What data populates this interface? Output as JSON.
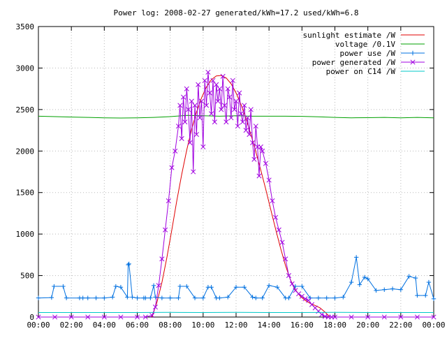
{
  "chart_data": {
    "type": "line",
    "title": "Power log: 2008-02-27 generated/kWh=17.2 used/kWh=6.8",
    "xlabel": "",
    "ylabel": "",
    "x_tick_labels": [
      "00:00",
      "02:00",
      "04:00",
      "06:00",
      "08:00",
      "10:00",
      "12:00",
      "14:00",
      "16:00",
      "18:00",
      "20:00",
      "22:00",
      "00:00"
    ],
    "y_ticks": [
      0,
      500,
      1000,
      1500,
      2000,
      2500,
      3000,
      3500
    ],
    "xlim": [
      0,
      24
    ],
    "ylim": [
      0,
      3500
    ],
    "grid": true,
    "legend_position": "top-right",
    "series": [
      {
        "name": "sunlight estimate /W",
        "color": "#e00000",
        "style": "line",
        "x": [
          6.9,
          7.2,
          7.5,
          7.8,
          8.1,
          8.4,
          8.7,
          9.0,
          9.3,
          9.6,
          9.9,
          10.2,
          10.5,
          10.8,
          11.1,
          11.4,
          11.7,
          12.0,
          12.3,
          12.6,
          12.9,
          13.2,
          13.5,
          13.8,
          14.1,
          14.4,
          14.7,
          15.0,
          15.3,
          15.6,
          15.9,
          16.2,
          16.5,
          16.8,
          17.1,
          17.4,
          17.7
        ],
        "y": [
          0,
          180,
          420,
          720,
          1050,
          1400,
          1720,
          2010,
          2260,
          2470,
          2640,
          2770,
          2860,
          2905,
          2910,
          2880,
          2810,
          2700,
          2560,
          2390,
          2200,
          1990,
          1770,
          1540,
          1300,
          1060,
          830,
          620,
          450,
          330,
          250,
          200,
          165,
          140,
          110,
          60,
          0
        ]
      },
      {
        "name": "voltage /0.1V",
        "color": "#00a000",
        "style": "line",
        "x": [
          0,
          1,
          2,
          3,
          4,
          5,
          6,
          7,
          8,
          9,
          10,
          11,
          12,
          13,
          14,
          15,
          16,
          17,
          18,
          19,
          20,
          21,
          22,
          23,
          24
        ],
        "y": [
          2420,
          2415,
          2410,
          2405,
          2400,
          2398,
          2400,
          2405,
          2415,
          2430,
          2425,
          2420,
          2425,
          2420,
          2420,
          2420,
          2418,
          2412,
          2405,
          2400,
          2402,
          2405,
          2400,
          2405,
          2400
        ]
      },
      {
        "name": "power use /W",
        "color": "#0070e0",
        "style": "linepoints-plus",
        "x": [
          0.0,
          0.8,
          0.95,
          1.5,
          1.7,
          2.5,
          2.7,
          3.0,
          3.5,
          4.0,
          4.5,
          4.7,
          5.0,
          5.4,
          5.45,
          5.5,
          5.7,
          6.0,
          6.4,
          6.5,
          6.8,
          7.0,
          7.1,
          7.5,
          8.0,
          8.5,
          8.6,
          9.0,
          9.5,
          10.0,
          10.3,
          10.5,
          10.8,
          11.0,
          11.5,
          12.0,
          12.5,
          13.0,
          13.2,
          13.6,
          14.0,
          14.5,
          15.0,
          15.2,
          15.6,
          16.0,
          16.5,
          17.0,
          17.5,
          18.0,
          18.5,
          19.0,
          19.3,
          19.5,
          19.8,
          20.0,
          20.5,
          21.0,
          21.5,
          22.0,
          22.5,
          22.9,
          23.0,
          23.5,
          23.7,
          24.0
        ],
        "y": [
          230,
          235,
          370,
          370,
          230,
          230,
          230,
          230,
          230,
          230,
          240,
          370,
          360,
          240,
          630,
          640,
          240,
          230,
          230,
          230,
          230,
          380,
          240,
          230,
          230,
          230,
          370,
          370,
          230,
          230,
          360,
          360,
          230,
          230,
          240,
          360,
          360,
          240,
          230,
          230,
          380,
          360,
          230,
          230,
          370,
          370,
          230,
          230,
          230,
          230,
          240,
          420,
          720,
          390,
          480,
          460,
          320,
          330,
          340,
          330,
          490,
          470,
          260,
          260,
          420,
          220
        ]
      },
      {
        "name": "power generated /W",
        "color": "#a000e0",
        "style": "linepoints-x",
        "x": [
          0.0,
          1.0,
          2.0,
          3.0,
          4.0,
          5.0,
          6.0,
          6.5,
          6.9,
          7.1,
          7.3,
          7.5,
          7.7,
          7.9,
          8.1,
          8.3,
          8.5,
          8.6,
          8.7,
          8.8,
          8.9,
          9.0,
          9.1,
          9.2,
          9.3,
          9.4,
          9.5,
          9.6,
          9.7,
          9.8,
          9.9,
          10.0,
          10.1,
          10.2,
          10.3,
          10.4,
          10.5,
          10.6,
          10.7,
          10.8,
          10.9,
          11.0,
          11.1,
          11.2,
          11.3,
          11.4,
          11.5,
          11.6,
          11.7,
          11.8,
          11.9,
          12.0,
          12.1,
          12.2,
          12.3,
          12.4,
          12.5,
          12.6,
          12.7,
          12.8,
          12.9,
          13.0,
          13.1,
          13.2,
          13.3,
          13.4,
          13.5,
          13.6,
          13.8,
          14.0,
          14.2,
          14.4,
          14.6,
          14.8,
          15.0,
          15.2,
          15.4,
          15.6,
          15.8,
          16.0,
          16.2,
          16.4,
          16.6,
          16.8,
          17.0,
          17.2,
          17.4,
          17.6,
          17.8,
          18.0,
          19.0,
          20.0,
          21.0,
          22.0,
          23.0,
          24.0
        ],
        "y": [
          0,
          0,
          0,
          0,
          0,
          0,
          0,
          0,
          20,
          120,
          380,
          700,
          1050,
          1400,
          1800,
          2000,
          2300,
          2550,
          2150,
          2650,
          2350,
          2750,
          2500,
          2100,
          2600,
          1750,
          2550,
          2200,
          2800,
          2400,
          2600,
          2050,
          2850,
          2550,
          2950,
          2700,
          2450,
          2850,
          2350,
          2800,
          2600,
          2750,
          2500,
          2900,
          2550,
          2350,
          2750,
          2650,
          2400,
          2850,
          2500,
          2600,
          2300,
          2700,
          2450,
          2350,
          2550,
          2250,
          2400,
          2200,
          2500,
          2100,
          1900,
          2300,
          2050,
          1700,
          2050,
          2000,
          1850,
          1650,
          1400,
          1200,
          1050,
          900,
          700,
          500,
          400,
          320,
          280,
          250,
          220,
          200,
          150,
          110,
          70,
          30,
          8,
          0,
          0,
          0,
          0,
          0,
          0,
          0,
          0,
          0
        ]
      },
      {
        "name": "power on C14 /W",
        "color": "#00c8c8",
        "style": "line",
        "x": [
          0,
          2,
          4,
          6,
          8,
          10,
          12,
          14,
          16,
          18,
          20,
          22,
          24
        ],
        "y": [
          55,
          55,
          55,
          55,
          56,
          55,
          56,
          55,
          55,
          56,
          55,
          55,
          55
        ]
      }
    ]
  }
}
